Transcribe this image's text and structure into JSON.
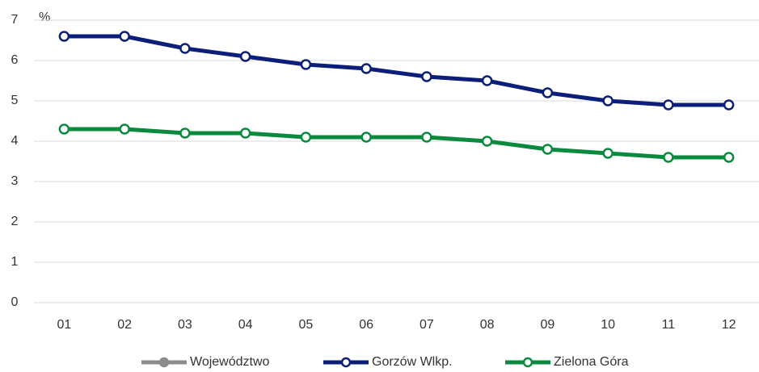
{
  "chart_data": {
    "type": "line",
    "y_label": "%",
    "categories": [
      "01",
      "02",
      "03",
      "04",
      "05",
      "06",
      "07",
      "08",
      "09",
      "10",
      "11",
      "12"
    ],
    "series": [
      {
        "name": "Województwo",
        "color": "#8c8c8c",
        "marker_fill": "#8c8c8c",
        "values": [
          null,
          null,
          null,
          null,
          null,
          null,
          null,
          null,
          null,
          null,
          null,
          null
        ]
      },
      {
        "name": "Gorzów Wlkp.",
        "color": "#0b1f7a",
        "marker_fill": "#ffffff",
        "values": [
          6.6,
          6.6,
          6.3,
          6.1,
          5.9,
          5.8,
          5.6,
          5.5,
          5.2,
          5.0,
          4.9,
          4.9
        ]
      },
      {
        "name": "Zielona Góra",
        "color": "#0a8a3c",
        "marker_fill": "#ffffff",
        "values": [
          4.3,
          4.3,
          4.2,
          4.2,
          4.1,
          4.1,
          4.1,
          4.0,
          3.8,
          3.7,
          3.6,
          3.6
        ]
      }
    ],
    "ylim": [
      0,
      7
    ],
    "yticks": [
      0,
      1,
      2,
      3,
      4,
      5,
      6,
      7
    ],
    "grid": true,
    "legend": "bottom"
  }
}
